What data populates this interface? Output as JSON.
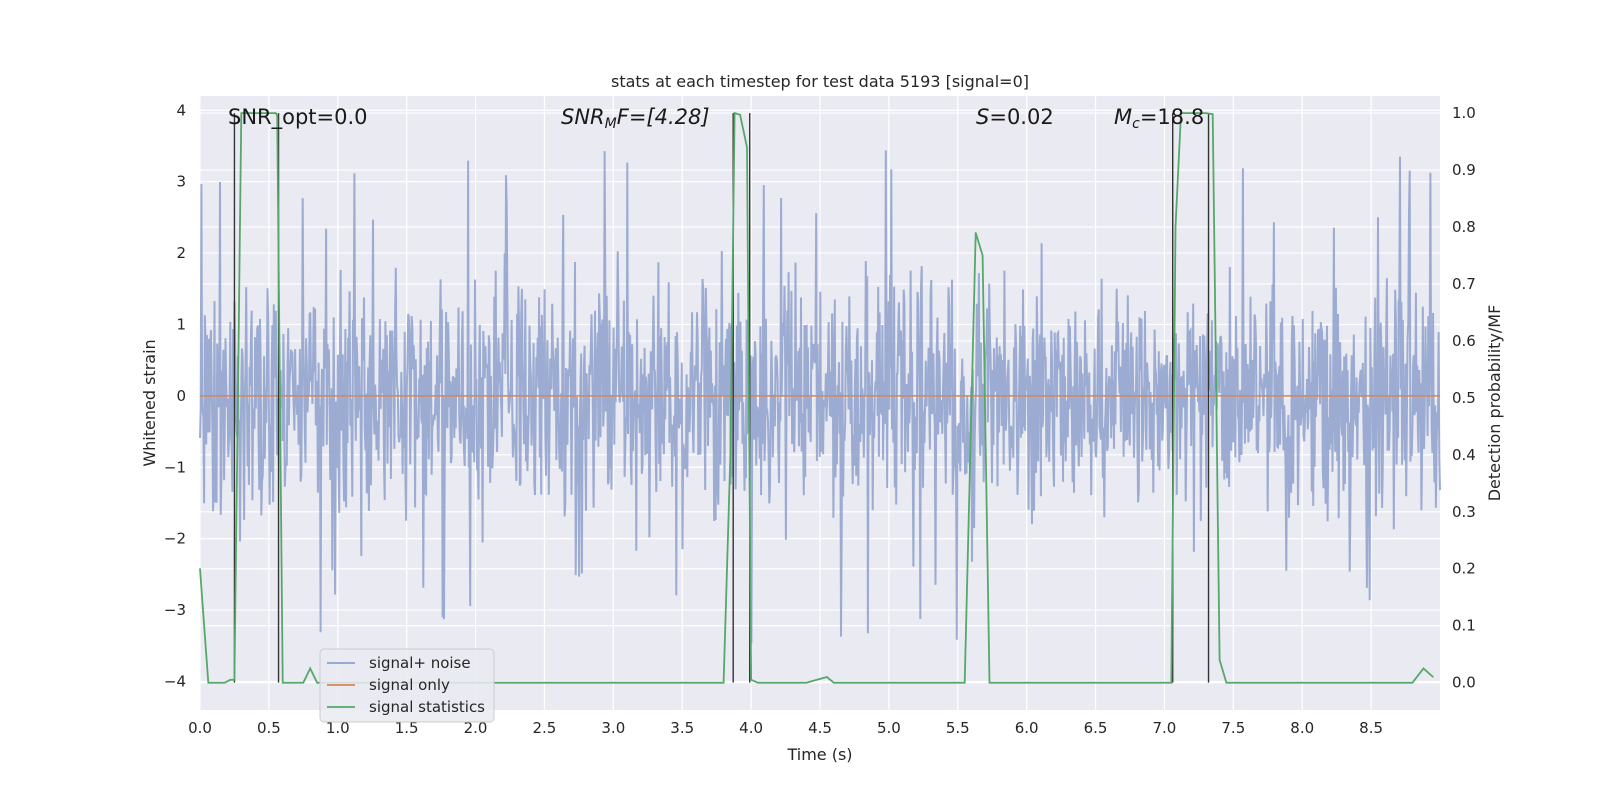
{
  "chart_data": {
    "type": "line",
    "title": "stats at each timestep for test data 5193 [signal=0]",
    "xlabel": "Time (s)",
    "ylabel_left": "Whitened strain",
    "ylabel_right": "Detection probability/MF",
    "xlim": [
      0.0,
      9.0
    ],
    "ylim_left": [
      -4.4,
      4.2
    ],
    "ylim_right": [
      -0.048,
      1.03
    ],
    "xticks": [
      "0.0",
      "0.5",
      "1.0",
      "1.5",
      "2.0",
      "2.5",
      "3.0",
      "3.5",
      "4.0",
      "4.5",
      "5.0",
      "5.5",
      "6.0",
      "6.5",
      "7.0",
      "7.5",
      "8.0",
      "8.5"
    ],
    "xtick_values": [
      0.0,
      0.5,
      1.0,
      1.5,
      2.0,
      2.5,
      3.0,
      3.5,
      4.0,
      4.5,
      5.0,
      5.5,
      6.0,
      6.5,
      7.0,
      7.5,
      8.0,
      8.5
    ],
    "yticks_left": [
      "−4",
      "−3",
      "−2",
      "−1",
      "0",
      "1",
      "2",
      "3",
      "4"
    ],
    "ytick_left_values": [
      -4,
      -3,
      -2,
      -1,
      0,
      1,
      2,
      3,
      4
    ],
    "yticks_right": [
      "0.0",
      "0.1",
      "0.2",
      "0.3",
      "0.4",
      "0.5",
      "0.6",
      "0.7",
      "0.8",
      "0.9",
      "1.0"
    ],
    "ytick_right_values": [
      0.0,
      0.1,
      0.2,
      0.3,
      0.4,
      0.5,
      0.6,
      0.7,
      0.8,
      0.9,
      1.0
    ],
    "annotations": {
      "snr_opt": "SNR_opt=0.0",
      "snr_mf_prefix": "SNR",
      "snr_mf_sub": "M",
      "snr_mf_suffix": "F=[4.28]",
      "s_prefix": "S",
      "s_value": "=0.02",
      "mc_prefix": "M",
      "mc_sub": "c",
      "mc_value": "=18.8"
    },
    "series": [
      {
        "name": "signal+ noise",
        "color": "#8da0cb",
        "description": "whitened noisy strain, roughly within ±2 with spikes to ±3.5"
      },
      {
        "name": "signal only",
        "color": "#dd8452",
        "values_constant": 0.0
      },
      {
        "name": "signal statistics",
        "color": "#55a868",
        "x": [
          0.0,
          0.06,
          0.1,
          0.18,
          0.22,
          0.25,
          0.28,
          0.3,
          0.5,
          0.55,
          0.56,
          0.6,
          0.62,
          0.7,
          0.75,
          0.8,
          0.85,
          0.9,
          1.0,
          2.0,
          3.0,
          3.5,
          3.8,
          3.85,
          3.88,
          3.92,
          3.97,
          4.0,
          4.05,
          4.1,
          4.4,
          4.55,
          4.6,
          5.0,
          5.25,
          5.5,
          5.55,
          5.63,
          5.68,
          5.73,
          5.8,
          6.5,
          7.0,
          7.05,
          7.08,
          7.12,
          7.2,
          7.3,
          7.35,
          7.4,
          7.45,
          7.6,
          8.0,
          8.25,
          8.3,
          8.8,
          8.88,
          8.95
        ],
        "values": [
          0.2,
          0.0,
          0.0,
          0.0,
          0.005,
          0.005,
          0.6,
          1.0,
          1.0,
          1.0,
          0.995,
          0.0,
          0.0,
          0.0,
          0.0,
          0.025,
          0.0,
          0.0,
          0.0,
          0.0,
          0.0,
          0.0,
          0.0,
          0.4,
          1.0,
          0.997,
          0.94,
          0.005,
          0.0,
          0.0,
          0.0,
          0.01,
          0.0,
          0.0,
          0.0,
          0.0,
          0.0,
          0.79,
          0.75,
          0.0,
          0.0,
          0.0,
          0.0,
          0.0,
          0.8,
          1.0,
          1.0,
          1.0,
          0.998,
          0.04,
          0.0,
          0.0,
          0.0,
          0.0,
          0.0,
          0.0,
          0.025,
          0.01
        ]
      }
    ],
    "vertical_markers_x": [
      0.25,
      0.57,
      3.87,
      3.99,
      7.06,
      7.32
    ],
    "marker_color": "#333333",
    "legend": {
      "location": "lower-left",
      "entries": [
        "signal+ noise",
        "signal only",
        "signal statistics"
      ]
    },
    "grid": true,
    "plot_background": "#eaeaf2"
  }
}
